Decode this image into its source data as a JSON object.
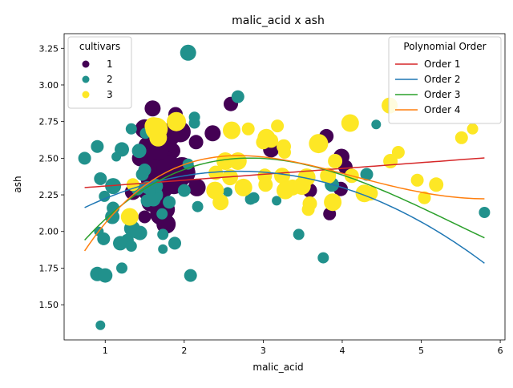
{
  "chart_data": {
    "type": "scatter",
    "title": "malic_acid x ash",
    "xlabel": "malic_acid",
    "ylabel": "ash",
    "xlim": [
      0.48,
      6.06
    ],
    "ylim": [
      1.26,
      3.35
    ],
    "xticks": [
      1,
      2,
      3,
      4,
      5,
      6
    ],
    "yticks": [
      1.5,
      1.75,
      2.0,
      2.25,
      2.5,
      2.75,
      3.0,
      3.25
    ],
    "grid": false,
    "legends": [
      {
        "title": "cultivars",
        "placement": "top-left",
        "entries": [
          {
            "label": "1",
            "color": "#440154"
          },
          {
            "label": "2",
            "color": "#21918c"
          },
          {
            "label": "3",
            "color": "#fde725"
          }
        ]
      },
      {
        "title": "Polynomial Order",
        "placement": "top-right",
        "entries": [
          {
            "label": "Order 1",
            "color": "#d62728"
          },
          {
            "label": "Order 2",
            "color": "#1f77b4"
          },
          {
            "label": "Order 3",
            "color": "#2ca02c"
          },
          {
            "label": "Order 4",
            "color": "#ff7f0e"
          }
        ]
      }
    ],
    "series": [
      {
        "name": "1",
        "color": "#440154",
        "points": [
          [
            1.6,
            2.84
          ],
          [
            2.59,
            2.87
          ],
          [
            1.89,
            2.8
          ],
          [
            1.9,
            2.7
          ],
          [
            1.8,
            2.65
          ],
          [
            1.65,
            2.67
          ],
          [
            1.95,
            2.68
          ],
          [
            1.5,
            2.7
          ],
          [
            1.7,
            2.6
          ],
          [
            1.55,
            2.58
          ],
          [
            1.85,
            2.55
          ],
          [
            2.36,
            2.67
          ],
          [
            1.63,
            2.52
          ],
          [
            1.75,
            2.45
          ],
          [
            1.67,
            2.48
          ],
          [
            1.81,
            2.41
          ],
          [
            1.97,
            2.42
          ],
          [
            1.73,
            2.4
          ],
          [
            1.78,
            2.38
          ],
          [
            1.59,
            2.36
          ],
          [
            1.62,
            2.33
          ],
          [
            1.72,
            2.3
          ],
          [
            1.65,
            2.25
          ],
          [
            1.58,
            2.2
          ],
          [
            1.71,
            2.12
          ],
          [
            1.76,
            2.15
          ],
          [
            1.5,
            2.1
          ],
          [
            1.35,
            2.27
          ],
          [
            1.44,
            2.5
          ],
          [
            2.15,
            2.61
          ],
          [
            2.16,
            2.3
          ],
          [
            1.81,
            2.43
          ],
          [
            1.77,
            2.05
          ],
          [
            1.87,
            2.32
          ],
          [
            1.92,
            2.36
          ],
          [
            2.0,
            2.4
          ],
          [
            3.1,
            2.56
          ],
          [
            3.8,
            2.65
          ],
          [
            3.99,
            2.51
          ],
          [
            4.04,
            2.44
          ],
          [
            3.59,
            2.28
          ],
          [
            3.98,
            2.29
          ],
          [
            3.84,
            2.12
          ],
          [
            1.52,
            2.27
          ],
          [
            1.68,
            2.55
          ]
        ],
        "sizes": [
          10,
          9,
          9,
          14,
          14,
          12,
          13,
          12,
          12,
          13,
          10,
          10,
          12,
          18,
          16,
          18,
          16,
          20,
          16,
          14,
          12,
          14,
          12,
          12,
          14,
          12,
          8,
          10,
          10,
          9,
          11,
          16,
          12,
          12,
          14,
          14,
          10,
          9,
          10,
          9,
          9,
          9,
          8,
          10,
          12
        ]
      },
      {
        "name": "2",
        "color": "#21918c",
        "points": [
          [
            2.05,
            3.22
          ],
          [
            0.74,
            2.5
          ],
          [
            0.9,
            2.58
          ],
          [
            1.21,
            2.56
          ],
          [
            1.33,
            2.7
          ],
          [
            1.51,
            2.67
          ],
          [
            2.68,
            2.92
          ],
          [
            2.13,
            2.78
          ],
          [
            2.13,
            2.74
          ],
          [
            1.5,
            2.42
          ],
          [
            1.1,
            2.31
          ],
          [
            0.94,
            2.36
          ],
          [
            0.99,
            2.24
          ],
          [
            1.1,
            2.16
          ],
          [
            1.09,
            2.1
          ],
          [
            0.92,
            2.0
          ],
          [
            0.98,
            1.95
          ],
          [
            1.19,
            1.92
          ],
          [
            1.28,
            1.94
          ],
          [
            1.33,
            1.9
          ],
          [
            1.44,
            1.99
          ],
          [
            1.34,
            2.02
          ],
          [
            1.39,
            1.99
          ],
          [
            1.73,
            1.98
          ],
          [
            1.73,
            1.88
          ],
          [
            1.88,
            1.92
          ],
          [
            1.21,
            1.75
          ],
          [
            0.9,
            1.71
          ],
          [
            1.0,
            1.7
          ],
          [
            2.08,
            1.7
          ],
          [
            0.94,
            1.36
          ],
          [
            3.45,
            1.98
          ],
          [
            3.76,
            1.82
          ],
          [
            5.8,
            2.13
          ],
          [
            4.43,
            2.73
          ],
          [
            4.31,
            2.39
          ],
          [
            3.17,
            2.21
          ],
          [
            2.88,
            2.23
          ],
          [
            2.84,
            2.22
          ],
          [
            2.55,
            2.27
          ],
          [
            2.44,
            2.19
          ],
          [
            2.17,
            2.17
          ],
          [
            2.0,
            2.28
          ],
          [
            1.81,
            2.2
          ],
          [
            1.72,
            2.12
          ],
          [
            1.63,
            2.25
          ],
          [
            1.53,
            2.21
          ],
          [
            1.61,
            2.22
          ],
          [
            1.64,
            2.31
          ],
          [
            1.57,
            2.28
          ],
          [
            1.41,
            2.29
          ],
          [
            1.14,
            2.51
          ],
          [
            1.43,
            2.55
          ],
          [
            1.47,
            2.39
          ],
          [
            1.53,
            2.3
          ],
          [
            3.87,
            2.32
          ],
          [
            2.05,
            2.46
          ]
        ],
        "sizes": [
          10,
          8,
          8,
          9,
          7,
          7,
          8,
          7,
          7,
          8,
          10,
          8,
          7,
          8,
          9,
          6,
          8,
          9,
          8,
          7,
          9,
          10,
          7,
          7,
          6,
          8,
          7,
          9,
          9,
          8,
          6,
          7,
          7,
          7,
          6,
          8,
          6,
          7,
          7,
          6,
          7,
          7,
          8,
          8,
          7,
          10,
          8,
          9,
          9,
          7,
          8,
          6,
          9,
          8,
          8,
          9,
          7
        ]
      },
      {
        "name": "3",
        "color": "#fde725",
        "points": [
          [
            1.65,
            2.7
          ],
          [
            1.9,
            2.75
          ],
          [
            1.67,
            2.64
          ],
          [
            1.61,
            2.72
          ],
          [
            2.4,
            2.4
          ],
          [
            2.39,
            2.28
          ],
          [
            2.46,
            2.2
          ],
          [
            2.52,
            2.48
          ],
          [
            2.6,
            2.69
          ],
          [
            2.68,
            2.48
          ],
          [
            2.75,
            2.3
          ],
          [
            2.58,
            2.37
          ],
          [
            2.81,
            2.7
          ],
          [
            3.0,
            2.61
          ],
          [
            3.04,
            2.64
          ],
          [
            3.1,
            2.62
          ],
          [
            3.18,
            2.72
          ],
          [
            3.26,
            2.58
          ],
          [
            3.27,
            2.54
          ],
          [
            3.24,
            2.38
          ],
          [
            3.28,
            2.28
          ],
          [
            3.03,
            2.32
          ],
          [
            3.02,
            2.38
          ],
          [
            3.37,
            2.3
          ],
          [
            3.49,
            2.31
          ],
          [
            3.55,
            2.37
          ],
          [
            3.59,
            2.19
          ],
          [
            3.57,
            2.15
          ],
          [
            3.7,
            2.6
          ],
          [
            3.82,
            2.38
          ],
          [
            3.88,
            2.2
          ],
          [
            3.91,
            2.48
          ],
          [
            4.1,
            2.74
          ],
          [
            4.12,
            2.38
          ],
          [
            4.28,
            2.26
          ],
          [
            4.36,
            2.26
          ],
          [
            4.6,
            2.86
          ],
          [
            4.61,
            2.48
          ],
          [
            4.71,
            2.54
          ],
          [
            4.95,
            2.35
          ],
          [
            5.04,
            2.23
          ],
          [
            5.19,
            2.32
          ],
          [
            5.51,
            2.64
          ],
          [
            5.65,
            2.7
          ],
          [
            1.31,
            2.1
          ],
          [
            1.35,
            2.32
          ]
        ],
        "sizes": [
          14,
          12,
          11,
          11,
          9,
          11,
          10,
          11,
          11,
          11,
          11,
          10,
          8,
          9,
          11,
          9,
          8,
          9,
          8,
          10,
          11,
          9,
          9,
          10,
          11,
          11,
          9,
          8,
          12,
          10,
          11,
          9,
          11,
          9,
          11,
          9,
          10,
          9,
          8,
          8,
          8,
          9,
          8,
          7,
          11,
          8
        ]
      }
    ],
    "fits": [
      {
        "name": "Order 1",
        "color": "#d62728",
        "coeffs": [
          2.27,
          0.04
        ],
        "xrange": [
          0.74,
          5.8
        ]
      },
      {
        "name": "Order 2",
        "color": "#1f77b4",
        "coeffs": [
          1.94,
          0.35,
          -0.065
        ],
        "xrange": [
          0.74,
          5.8
        ]
      },
      {
        "name": "Order 3",
        "color": "#2ca02c",
        "coeffs": [
          1.4,
          0.88,
          -0.21,
          0.0129
        ],
        "xrange": [
          0.74,
          5.8
        ]
      },
      {
        "name": "Order 4",
        "color": "#ff7f0e",
        "coeffs": [
          1.08,
          1.35,
          -0.42,
          0.048,
          -0.0017
        ],
        "xrange": [
          0.74,
          5.8
        ]
      }
    ]
  }
}
